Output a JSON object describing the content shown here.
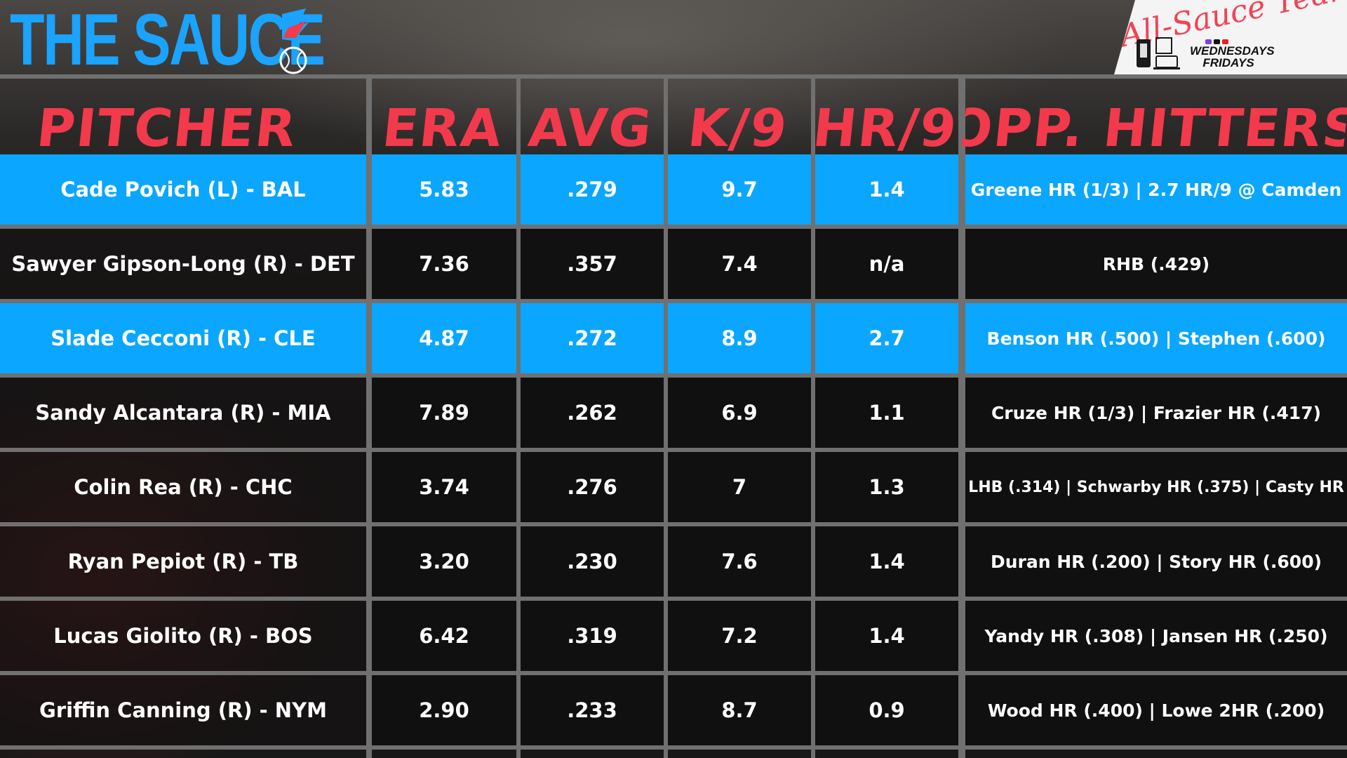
{
  "brand": {
    "title": "THE SAUCE",
    "badge_script": "All-Sauce Team",
    "badge_schedule": "WEDNESDAYS FRIDAYS",
    "colors": {
      "blue": "#0aa6ff",
      "red": "#f23a4c",
      "dark": "#111111"
    }
  },
  "columns": [
    {
      "key": "pitcher",
      "label": "PITCHER"
    },
    {
      "key": "era",
      "label": "ERA"
    },
    {
      "key": "avg",
      "label": "AVG"
    },
    {
      "key": "k9",
      "label": "K/9"
    },
    {
      "key": "hr9",
      "label": "HR/9"
    },
    {
      "key": "opp",
      "label": "OPP. HITTERS"
    }
  ],
  "rows": [
    {
      "pitcher": "Cade Povich (L) - BAL",
      "era": "5.83",
      "avg": ".279",
      "k9": "9.7",
      "hr9": "1.4",
      "opp": "Greene HR (1/3) | 2.7 HR/9 @ Camden",
      "style": "blue"
    },
    {
      "pitcher": "Sawyer Gipson-Long (R) - DET",
      "era": "7.36",
      "avg": ".357",
      "k9": "7.4",
      "hr9": "n/a",
      "opp": "RHB (.429)",
      "style": "dark"
    },
    {
      "pitcher": "Slade Cecconi (R) - CLE",
      "era": "4.87",
      "avg": ".272",
      "k9": "8.9",
      "hr9": "2.7",
      "opp": "Benson HR (.500) | Stephen (.600)",
      "style": "blue"
    },
    {
      "pitcher": "Sandy Alcantara (R) - MIA",
      "era": "7.89",
      "avg": ".262",
      "k9": "6.9",
      "hr9": "1.1",
      "opp": "Cruze HR (1/3) | Frazier HR (.417)",
      "style": "dark"
    },
    {
      "pitcher": "Colin Rea (R) - CHC",
      "era": "3.74",
      "avg": ".276",
      "k9": "7",
      "hr9": "1.3",
      "opp": "LHB (.314) | Schwarby HR (.375) | Casty HR",
      "style": "dark"
    },
    {
      "pitcher": "Ryan Pepiot (R) - TB",
      "era": "3.20",
      "avg": ".230",
      "k9": "7.6",
      "hr9": "1.4",
      "opp": "Duran HR (.200) | Story HR (.600)",
      "style": "dark"
    },
    {
      "pitcher": "Lucas Giolito (R) - BOS",
      "era": "6.42",
      "avg": ".319",
      "k9": "7.2",
      "hr9": "1.4",
      "opp": "Yandy HR (.308) | Jansen HR (.250)",
      "style": "dark"
    },
    {
      "pitcher": "Griffin Canning (R) - NYM",
      "era": "2.90",
      "avg": ".233",
      "k9": "8.7",
      "hr9": "0.9",
      "opp": "Wood HR (.400) | Lowe 2HR (.200)",
      "style": "dark"
    }
  ]
}
